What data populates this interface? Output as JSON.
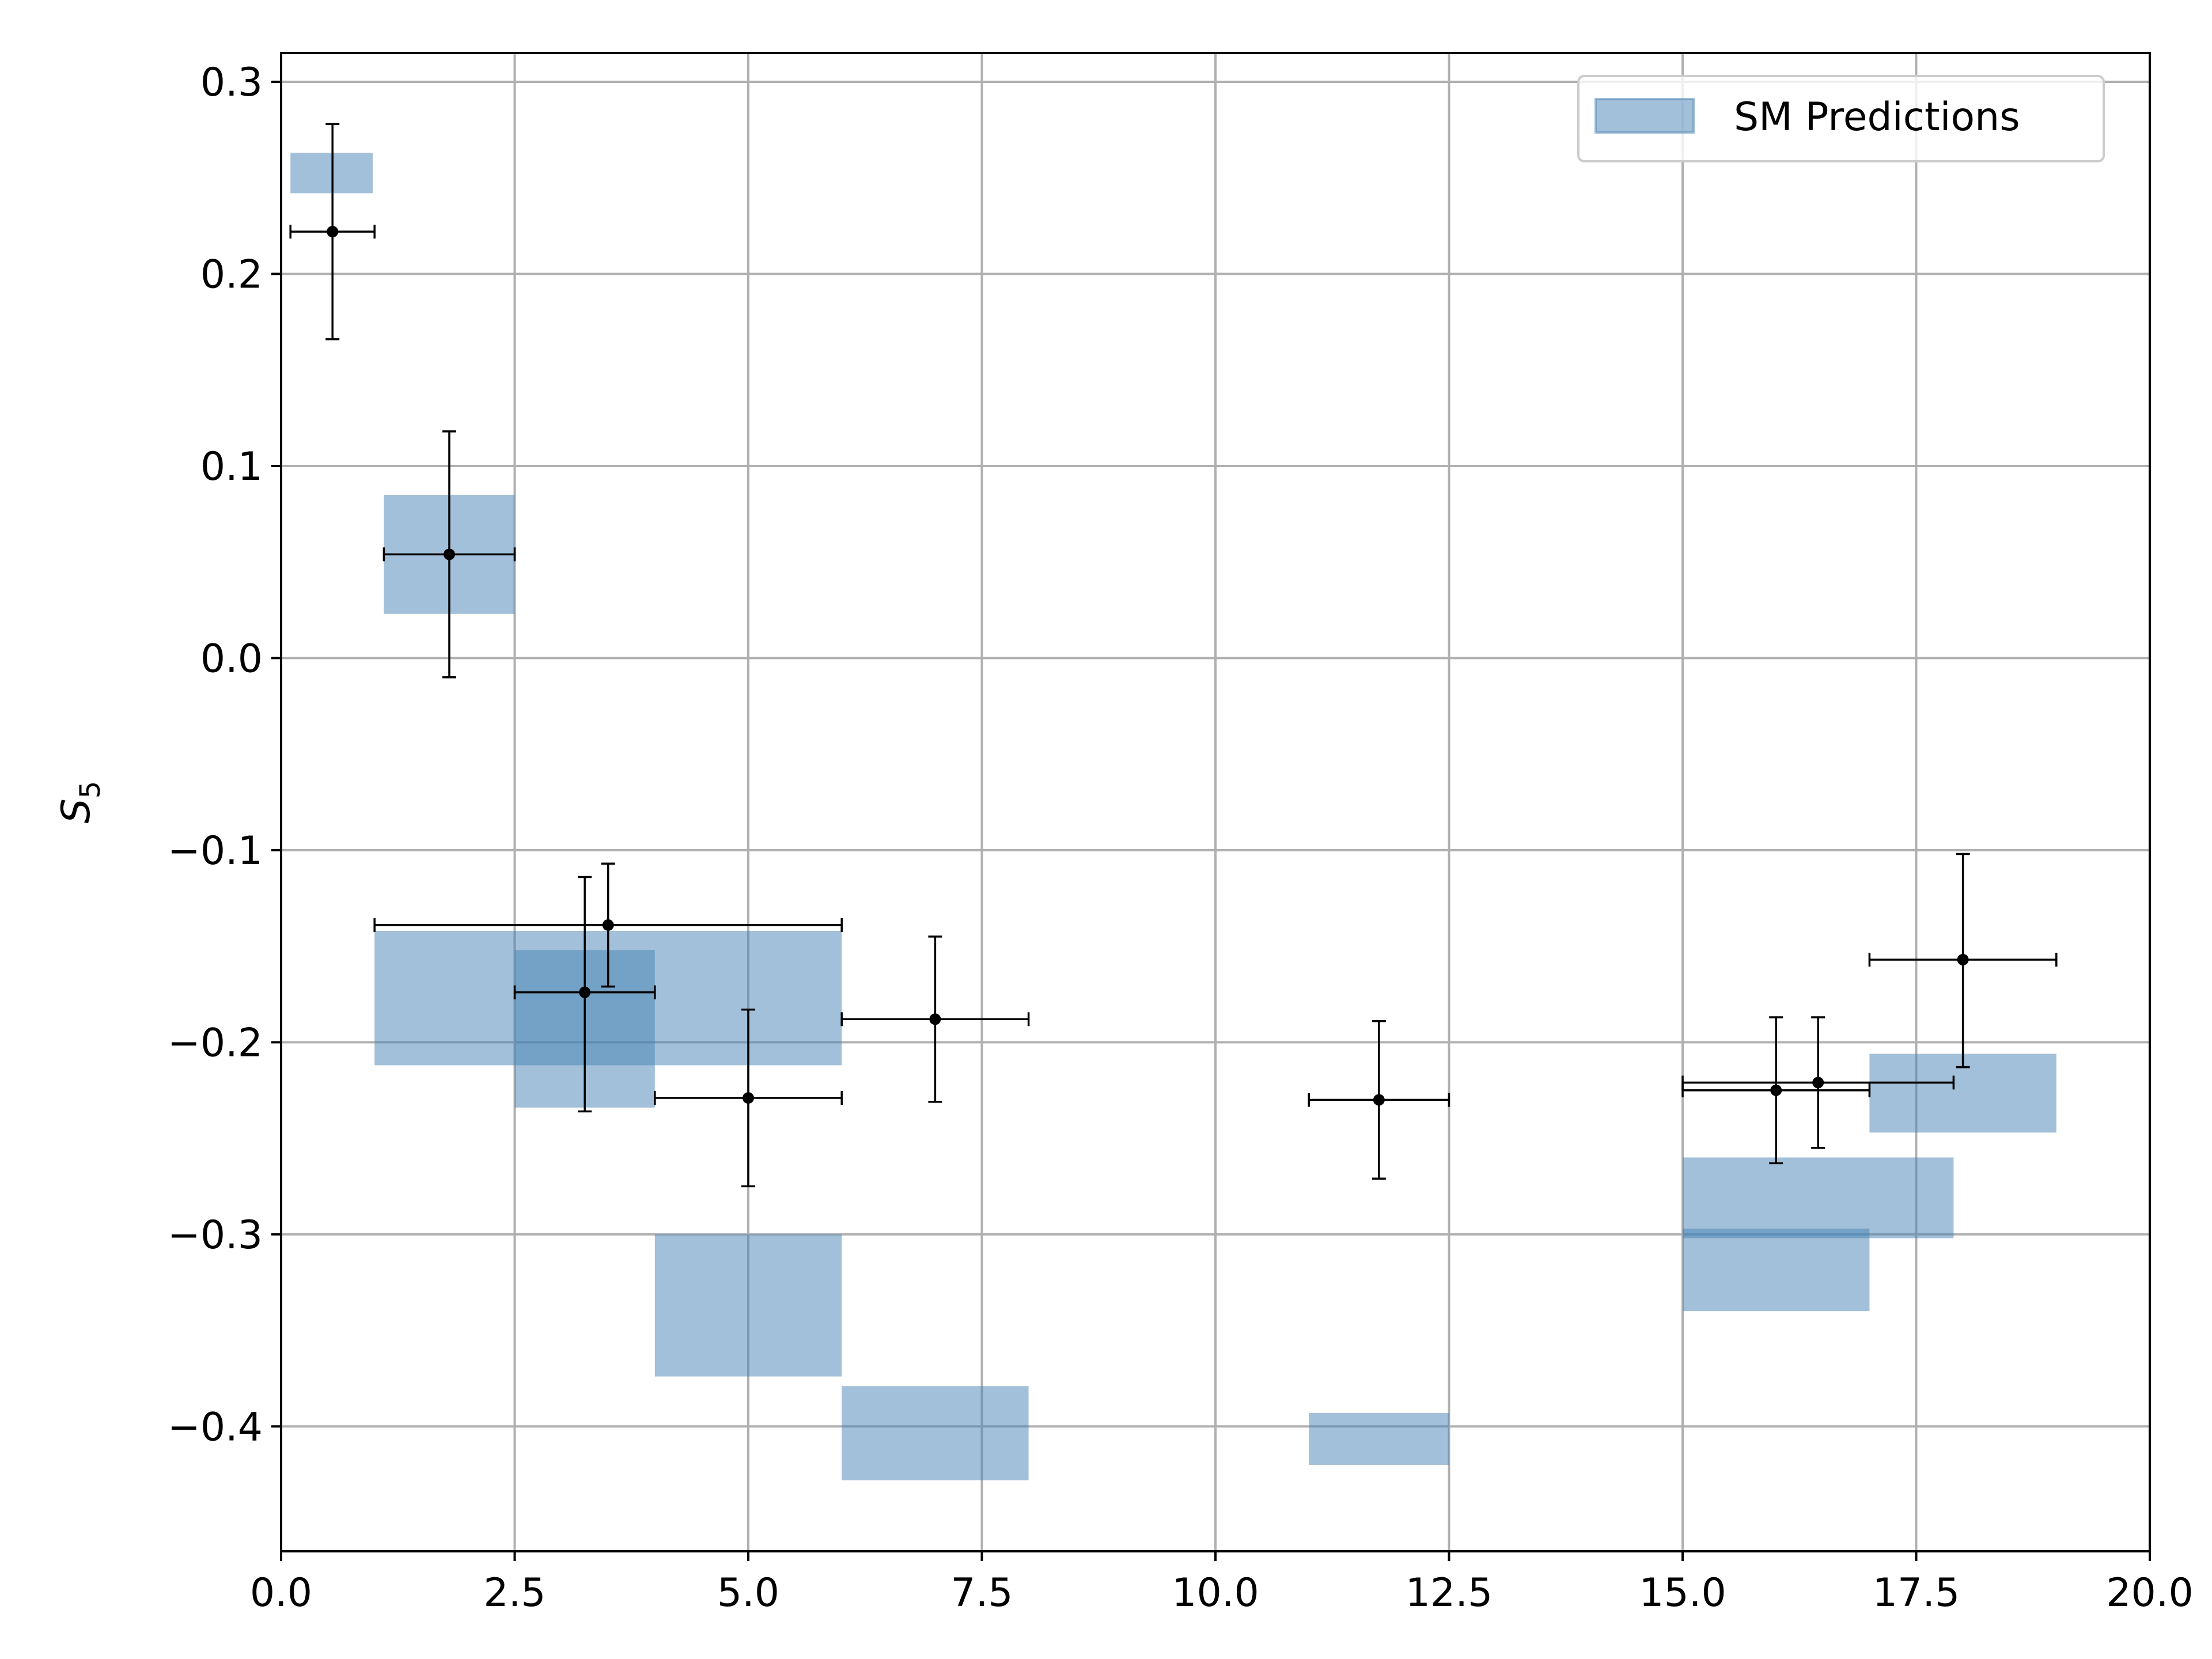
{
  "chart_data": {
    "type": "scatter",
    "title": "",
    "xlabel": "",
    "ylabel": "S",
    "ylabel_subscript": "5",
    "xlim": [
      0.0,
      20.0
    ],
    "ylim": [
      -0.465,
      0.315
    ],
    "xticks": [
      0.0,
      2.5,
      5.0,
      7.5,
      10.0,
      12.5,
      15.0,
      17.5,
      20.0
    ],
    "xtick_labels": [
      "0.0",
      "2.5",
      "5.0",
      "7.5",
      "10.0",
      "12.5",
      "15.0",
      "17.5",
      "20.0"
    ],
    "yticks": [
      0.3,
      0.2,
      0.1,
      0.0,
      -0.1,
      -0.2,
      -0.3,
      -0.4
    ],
    "ytick_labels": [
      "0.3",
      "0.2",
      "0.1",
      "0.0",
      "−0.1",
      "−0.2",
      "−0.3",
      "−0.4"
    ],
    "grid": true,
    "legend": {
      "position": "top-right",
      "entries": [
        "SM Predictions"
      ]
    },
    "colors": {
      "prediction_fill": "#4682b4",
      "prediction_alpha": 0.5,
      "points": "#000000",
      "grid": "#b0b0b0"
    },
    "series": [
      {
        "name": "SM Predictions",
        "kind": "boxes",
        "boxes": [
          {
            "x0": 0.1,
            "x1": 0.98,
            "y0": 0.242,
            "y1": 0.263
          },
          {
            "x0": 1.1,
            "x1": 2.5,
            "y0": 0.023,
            "y1": 0.085
          },
          {
            "x0": 1.0,
            "x1": 6.0,
            "y0": -0.212,
            "y1": -0.142
          },
          {
            "x0": 2.5,
            "x1": 4.0,
            "y0": -0.234,
            "y1": -0.152
          },
          {
            "x0": 4.0,
            "x1": 6.0,
            "y0": -0.374,
            "y1": -0.3
          },
          {
            "x0": 6.0,
            "x1": 8.0,
            "y0": -0.428,
            "y1": -0.379
          },
          {
            "x0": 11.0,
            "x1": 12.5,
            "y0": -0.42,
            "y1": -0.393
          },
          {
            "x0": 15.0,
            "x1": 17.9,
            "y0": -0.302,
            "y1": -0.26
          },
          {
            "x0": 15.0,
            "x1": 17.0,
            "y0": -0.34,
            "y1": -0.297
          },
          {
            "x0": 17.0,
            "x1": 19.0,
            "y0": -0.247,
            "y1": -0.206
          }
        ]
      },
      {
        "name": "",
        "kind": "errorbar",
        "points": [
          {
            "x": 0.55,
            "y": 0.222,
            "xerr_lo": 0.45,
            "xerr_hi": 0.45,
            "yerr_lo": 0.056,
            "yerr_hi": 0.056
          },
          {
            "x": 1.8,
            "y": 0.054,
            "xerr_lo": 0.7,
            "xerr_hi": 0.7,
            "yerr_lo": 0.064,
            "yerr_hi": 0.064
          },
          {
            "x": 3.5,
            "y": -0.139,
            "xerr_lo": 2.5,
            "xerr_hi": 2.5,
            "yerr_lo": 0.032,
            "yerr_hi": 0.032
          },
          {
            "x": 3.25,
            "y": -0.174,
            "xerr_lo": 0.75,
            "xerr_hi": 0.75,
            "yerr_lo": 0.062,
            "yerr_hi": 0.06
          },
          {
            "x": 5.0,
            "y": -0.229,
            "xerr_lo": 1.0,
            "xerr_hi": 1.0,
            "yerr_lo": 0.046,
            "yerr_hi": 0.046
          },
          {
            "x": 7.0,
            "y": -0.188,
            "xerr_lo": 1.0,
            "xerr_hi": 1.0,
            "yerr_lo": 0.043,
            "yerr_hi": 0.043
          },
          {
            "x": 11.75,
            "y": -0.23,
            "xerr_lo": 0.75,
            "xerr_hi": 0.75,
            "yerr_lo": 0.041,
            "yerr_hi": 0.041
          },
          {
            "x": 16.0,
            "y": -0.225,
            "xerr_lo": 1.0,
            "xerr_hi": 1.0,
            "yerr_lo": 0.038,
            "yerr_hi": 0.038
          },
          {
            "x": 16.45,
            "y": -0.221,
            "xerr_lo": 1.45,
            "xerr_hi": 1.45,
            "yerr_lo": 0.034,
            "yerr_hi": 0.034
          },
          {
            "x": 18.0,
            "y": -0.157,
            "xerr_lo": 1.0,
            "xerr_hi": 1.0,
            "yerr_lo": 0.056,
            "yerr_hi": 0.055
          }
        ]
      }
    ]
  }
}
